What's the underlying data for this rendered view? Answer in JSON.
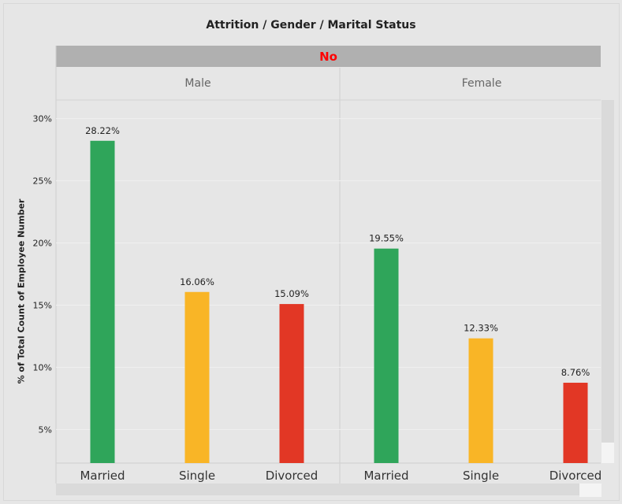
{
  "title": "Attrition / Gender / Marital Status",
  "header": "No",
  "chart_data": {
    "type": "bar",
    "ylabel": "% of Total Count of Employee Number",
    "ylim": [
      2.3,
      31.5
    ],
    "yticks": [
      5,
      10,
      15,
      20,
      25,
      30
    ],
    "ytick_labels": [
      "5%",
      "10%",
      "15%",
      "20%",
      "25%",
      "30%"
    ],
    "grid": true,
    "panels": [
      {
        "name": "Male",
        "categories": [
          "Married",
          "Single",
          "Divorced"
        ],
        "values": [
          28.22,
          16.06,
          15.09
        ],
        "labels": [
          "28.22%",
          "16.06%",
          "15.09%"
        ]
      },
      {
        "name": "Female",
        "categories": [
          "Married",
          "Single",
          "Divorced"
        ],
        "values": [
          19.55,
          12.33,
          8.76
        ],
        "labels": [
          "19.55%",
          "12.33%",
          "8.76%"
        ]
      }
    ],
    "colors": {
      "Married": "#2fa55a",
      "Single": "#f9b526",
      "Divorced": "#e23725"
    }
  }
}
